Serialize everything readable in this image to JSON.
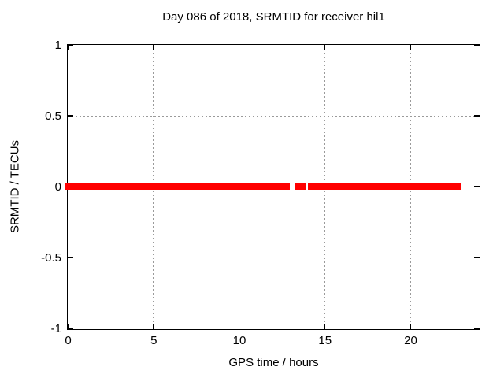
{
  "title": "Day 086 of 2018, SRMTID for receiver hil1",
  "colors": {
    "data": "#ff0000",
    "grid": "#9a9a9a",
    "axis": "#000000",
    "background": "#ffffff"
  },
  "chart_data": {
    "type": "scatter",
    "title": "Day 086 of 2018, SRMTID for receiver hil1",
    "xlabel": "GPS time / hours",
    "ylabel": "SRMTID / TECUs",
    "xlim": [
      0,
      24
    ],
    "ylim": [
      -1,
      1
    ],
    "xticks": [
      0,
      5,
      10,
      15,
      20
    ],
    "yticks": [
      1,
      0.5,
      0,
      -0.5,
      -1
    ],
    "grid": "dotted, on ticks",
    "legend": "none",
    "series": [
      {
        "name": "SRMTID",
        "color": "#ff0000",
        "marker": "filled-square",
        "y_value": 0,
        "x_segments": [
          [
            0,
            10.93
          ],
          [
            11.11,
            12.85
          ],
          [
            13.4,
            13.81
          ],
          [
            14.18,
            16.13
          ],
          [
            16.24,
            22.82
          ]
        ]
      }
    ]
  }
}
